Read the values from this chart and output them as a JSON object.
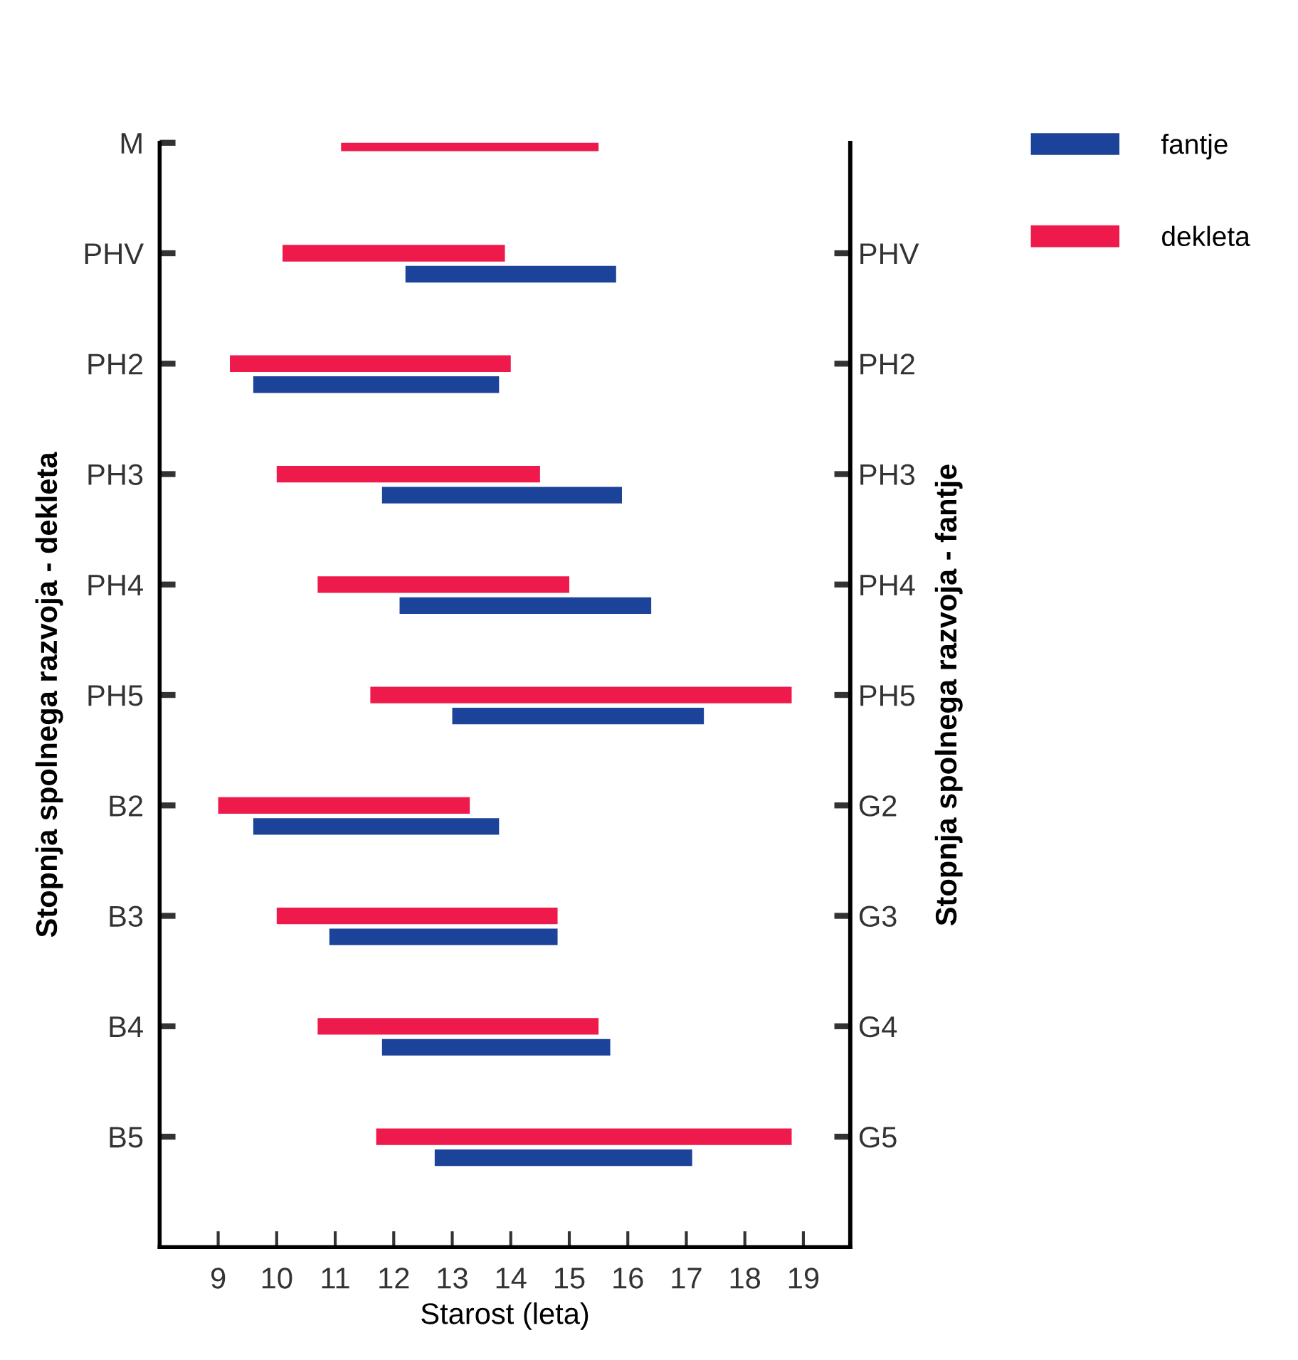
{
  "chart_data": {
    "type": "bar",
    "orientation": "horizontal",
    "xlabel": "Starost (leta)",
    "ylabel": "Stopnja spolnega razvoja - dekleta",
    "y2label": "Stopnja spolnega razvoja - fantje",
    "categories": [
      "M",
      "PHV",
      "PH2",
      "PH3",
      "PH4",
      "PH5",
      "B2",
      "B3",
      "B4",
      "B5"
    ],
    "y2_categories": [
      null,
      "PHV",
      "PH2",
      "PH3",
      "PH4",
      "PH5",
      "G2",
      "G3",
      "G4",
      "G5"
    ],
    "series": [
      {
        "name": "fantje",
        "color": "#1b4399",
        "base": [
          null,
          12.2,
          9.6,
          11.8,
          12.1,
          13.0,
          9.6,
          10.9,
          11.8,
          12.7
        ],
        "values": [
          null,
          3.6,
          4.2,
          4.1,
          4.3,
          4.3,
          4.2,
          3.9,
          3.9,
          4.4
        ]
      },
      {
        "name": "dekleta",
        "color": "#ee1a4b",
        "base": [
          11.1,
          10.1,
          9.2,
          10.0,
          10.7,
          11.6,
          9.0,
          10.0,
          10.7,
          11.7
        ],
        "values": [
          4.4,
          3.8,
          4.8,
          4.5,
          4.3,
          7.2,
          4.3,
          4.8,
          4.8,
          7.1
        ]
      }
    ],
    "xlim": [
      8,
      19.8
    ],
    "xticks": [
      9,
      10,
      11,
      12,
      13,
      14,
      15,
      16,
      17,
      18,
      19
    ],
    "legend": "top right",
    "grid": false
  }
}
